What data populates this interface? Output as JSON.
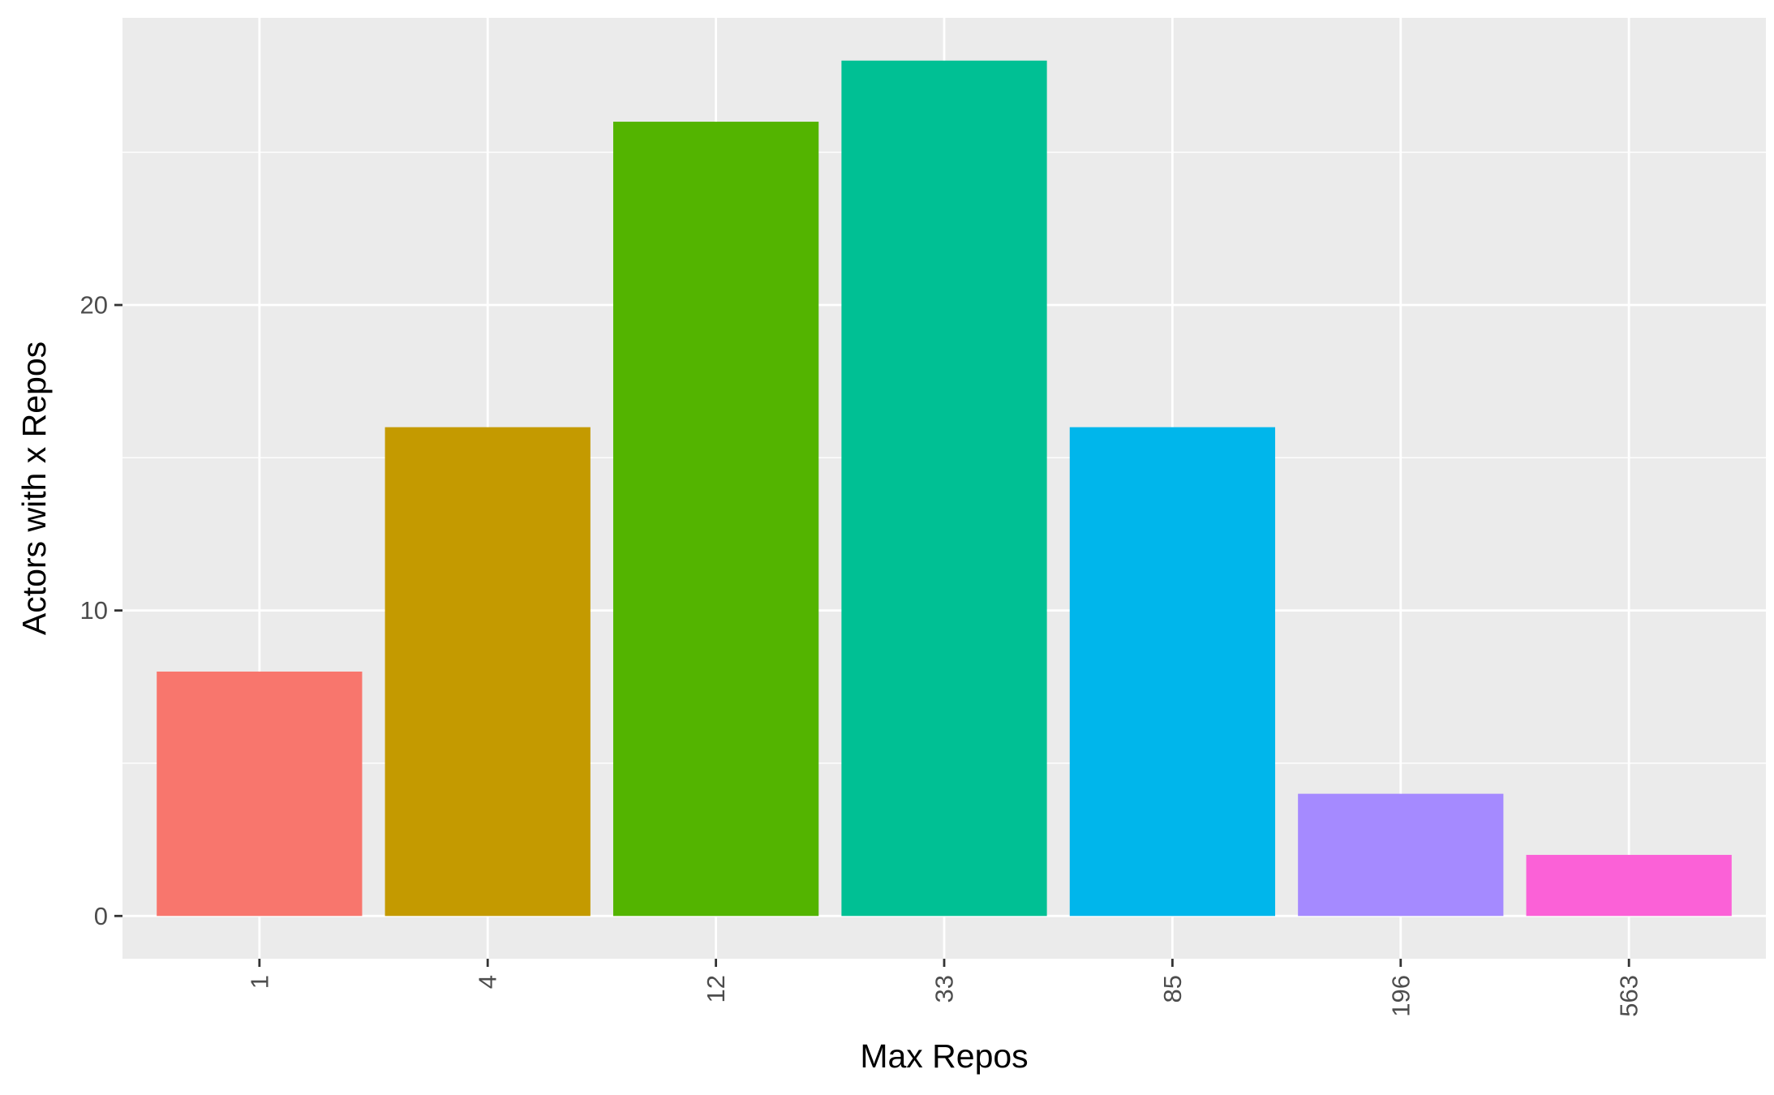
{
  "chart_data": {
    "type": "bar",
    "categories": [
      "1",
      "4",
      "12",
      "33",
      "85",
      "196",
      "563"
    ],
    "values": [
      8,
      16,
      26,
      28,
      16,
      4,
      2
    ],
    "colors": [
      "#F8766D",
      "#C49A00",
      "#53B400",
      "#00C094",
      "#00B6EB",
      "#A58AFF",
      "#FB61D7"
    ],
    "title": "",
    "xlabel": "Max Repos",
    "ylabel": "Actors with x Repos",
    "ylim": [
      -1.4,
      29.4
    ],
    "yticks": [
      0,
      10,
      20
    ],
    "y_minor_ticks": [
      5,
      15,
      25
    ],
    "grid": true,
    "legend": "none",
    "panel_background": "#EBEBEB",
    "gridline_color": "#FFFFFF"
  }
}
